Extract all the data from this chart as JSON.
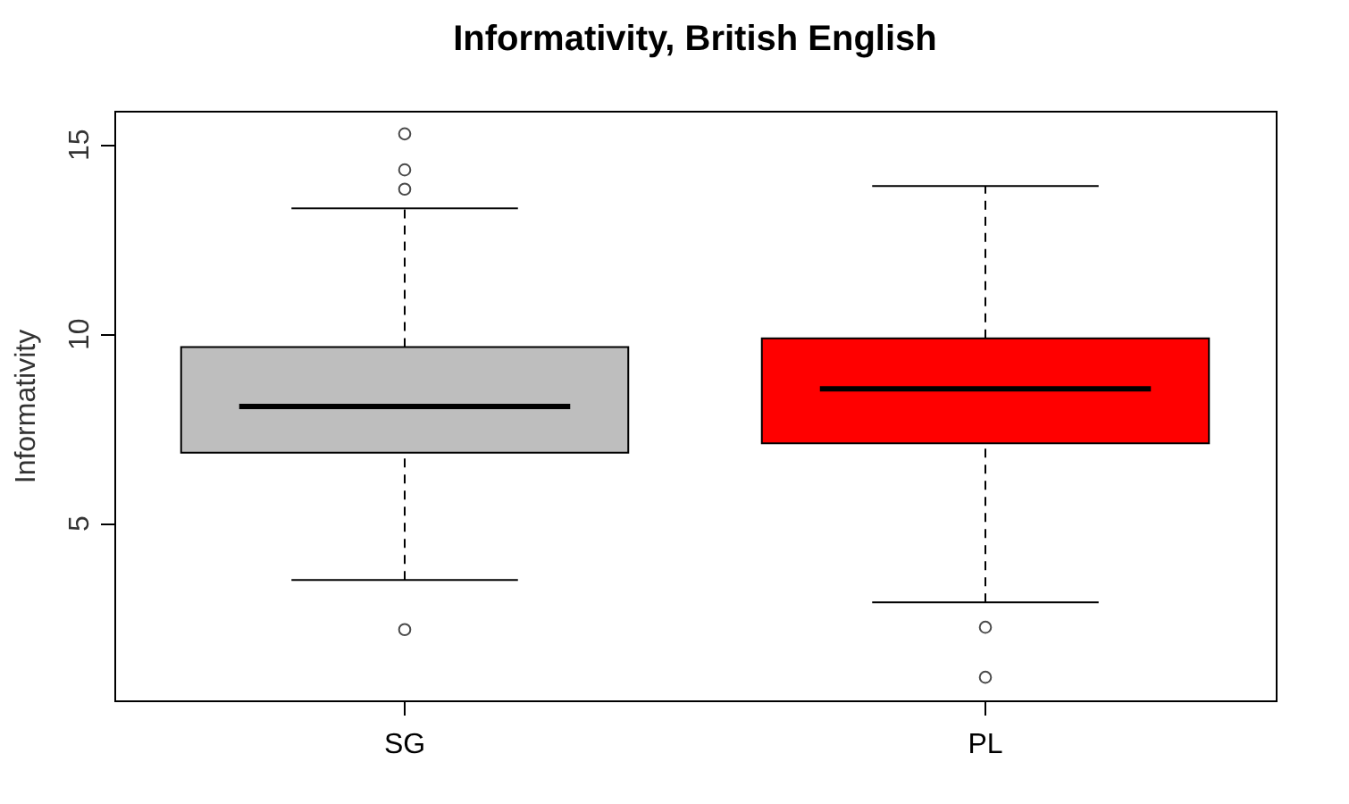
{
  "chart_data": {
    "type": "box",
    "title": "Informativity, British English",
    "ylabel": "Informativity",
    "categories": [
      "SG",
      "PL"
    ],
    "colors": [
      "#bebebe",
      "#ff0000"
    ],
    "boxes": [
      {
        "low": 3.49,
        "q1": 6.85,
        "median": 8.07,
        "q3": 9.64,
        "high": 13.3,
        "outliers": [
          15.27,
          14.32,
          13.81,
          2.18
        ]
      },
      {
        "low": 2.9,
        "q1": 7.1,
        "median": 8.54,
        "q3": 9.87,
        "high": 13.89,
        "outliers": [
          2.24,
          0.92
        ]
      }
    ],
    "ylim": [
      0.31,
      15.88
    ],
    "yticks": [
      5,
      10,
      15
    ]
  }
}
